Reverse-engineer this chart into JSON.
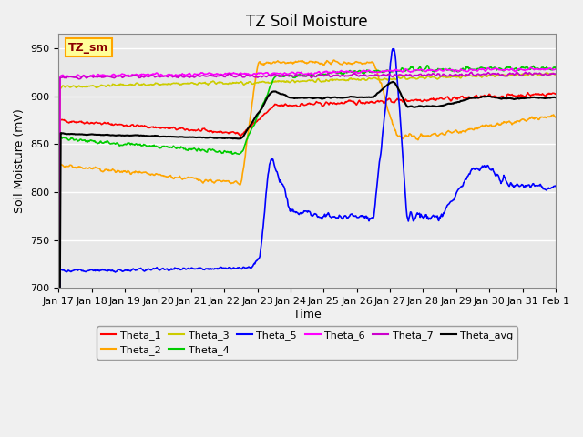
{
  "title": "TZ Soil Moisture",
  "ylabel": "Soil Moisture (mV)",
  "xlabel": "Time",
  "label_box": "TZ_sm",
  "ylim": [
    700,
    965
  ],
  "x_tick_labels": [
    "Jan 17",
    "Jan 18",
    "Jan 19",
    "Jan 20",
    "Jan 21",
    "Jan 22",
    "Jan 23",
    "Jan 24",
    "Jan 25",
    "Jan 26",
    "Jan 27",
    "Jan 28",
    "Jan 29",
    "Jan 30",
    "Jan 31",
    "Feb 1"
  ],
  "series": {
    "Theta_1": {
      "color": "#FF0000",
      "linewidth": 1.2
    },
    "Theta_2": {
      "color": "#FFA500",
      "linewidth": 1.2
    },
    "Theta_3": {
      "color": "#CCCC00",
      "linewidth": 1.2
    },
    "Theta_4": {
      "color": "#00CC00",
      "linewidth": 1.2
    },
    "Theta_5": {
      "color": "#0000FF",
      "linewidth": 1.2
    },
    "Theta_6": {
      "color": "#FF00FF",
      "linewidth": 1.2
    },
    "Theta_7": {
      "color": "#CC00CC",
      "linewidth": 1.2
    },
    "Theta_avg": {
      "color": "#000000",
      "linewidth": 1.5
    }
  },
  "background_color": "#E8E8E8",
  "grid_color": "#FFFFFF",
  "title_fontsize": 12,
  "tick_fontsize": 8,
  "legend_fontsize": 8
}
